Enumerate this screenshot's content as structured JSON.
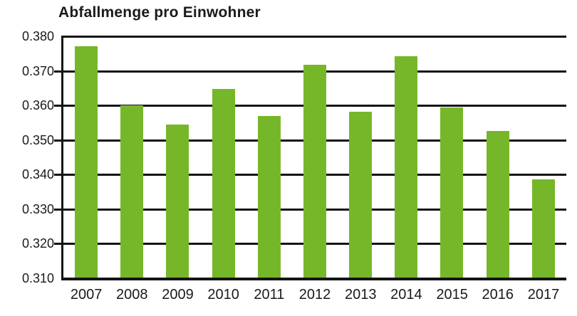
{
  "chart_data": {
    "type": "bar",
    "title": "Abfallmenge pro Einwohner",
    "categories": [
      "2007",
      "2008",
      "2009",
      "2010",
      "2011",
      "2012",
      "2013",
      "2014",
      "2015",
      "2016",
      "2017"
    ],
    "values": [
      0.377,
      0.3598,
      0.3542,
      0.3645,
      0.3568,
      0.3715,
      0.358,
      0.374,
      0.3593,
      0.3525,
      0.3385
    ],
    "xlabel": "",
    "ylabel": "",
    "ylim": [
      0.31,
      0.38
    ],
    "ytick_step": 0.01,
    "ytick_labels": [
      "0.380",
      "0.370",
      "0.360",
      "0.350",
      "0.340",
      "0.330",
      "0.320",
      "0.310"
    ],
    "grid": true,
    "legend": "none",
    "bar_color": "#76b72a",
    "axis_color": "#141414",
    "text_color": "#1a1a1a",
    "background": "#ffffff"
  }
}
